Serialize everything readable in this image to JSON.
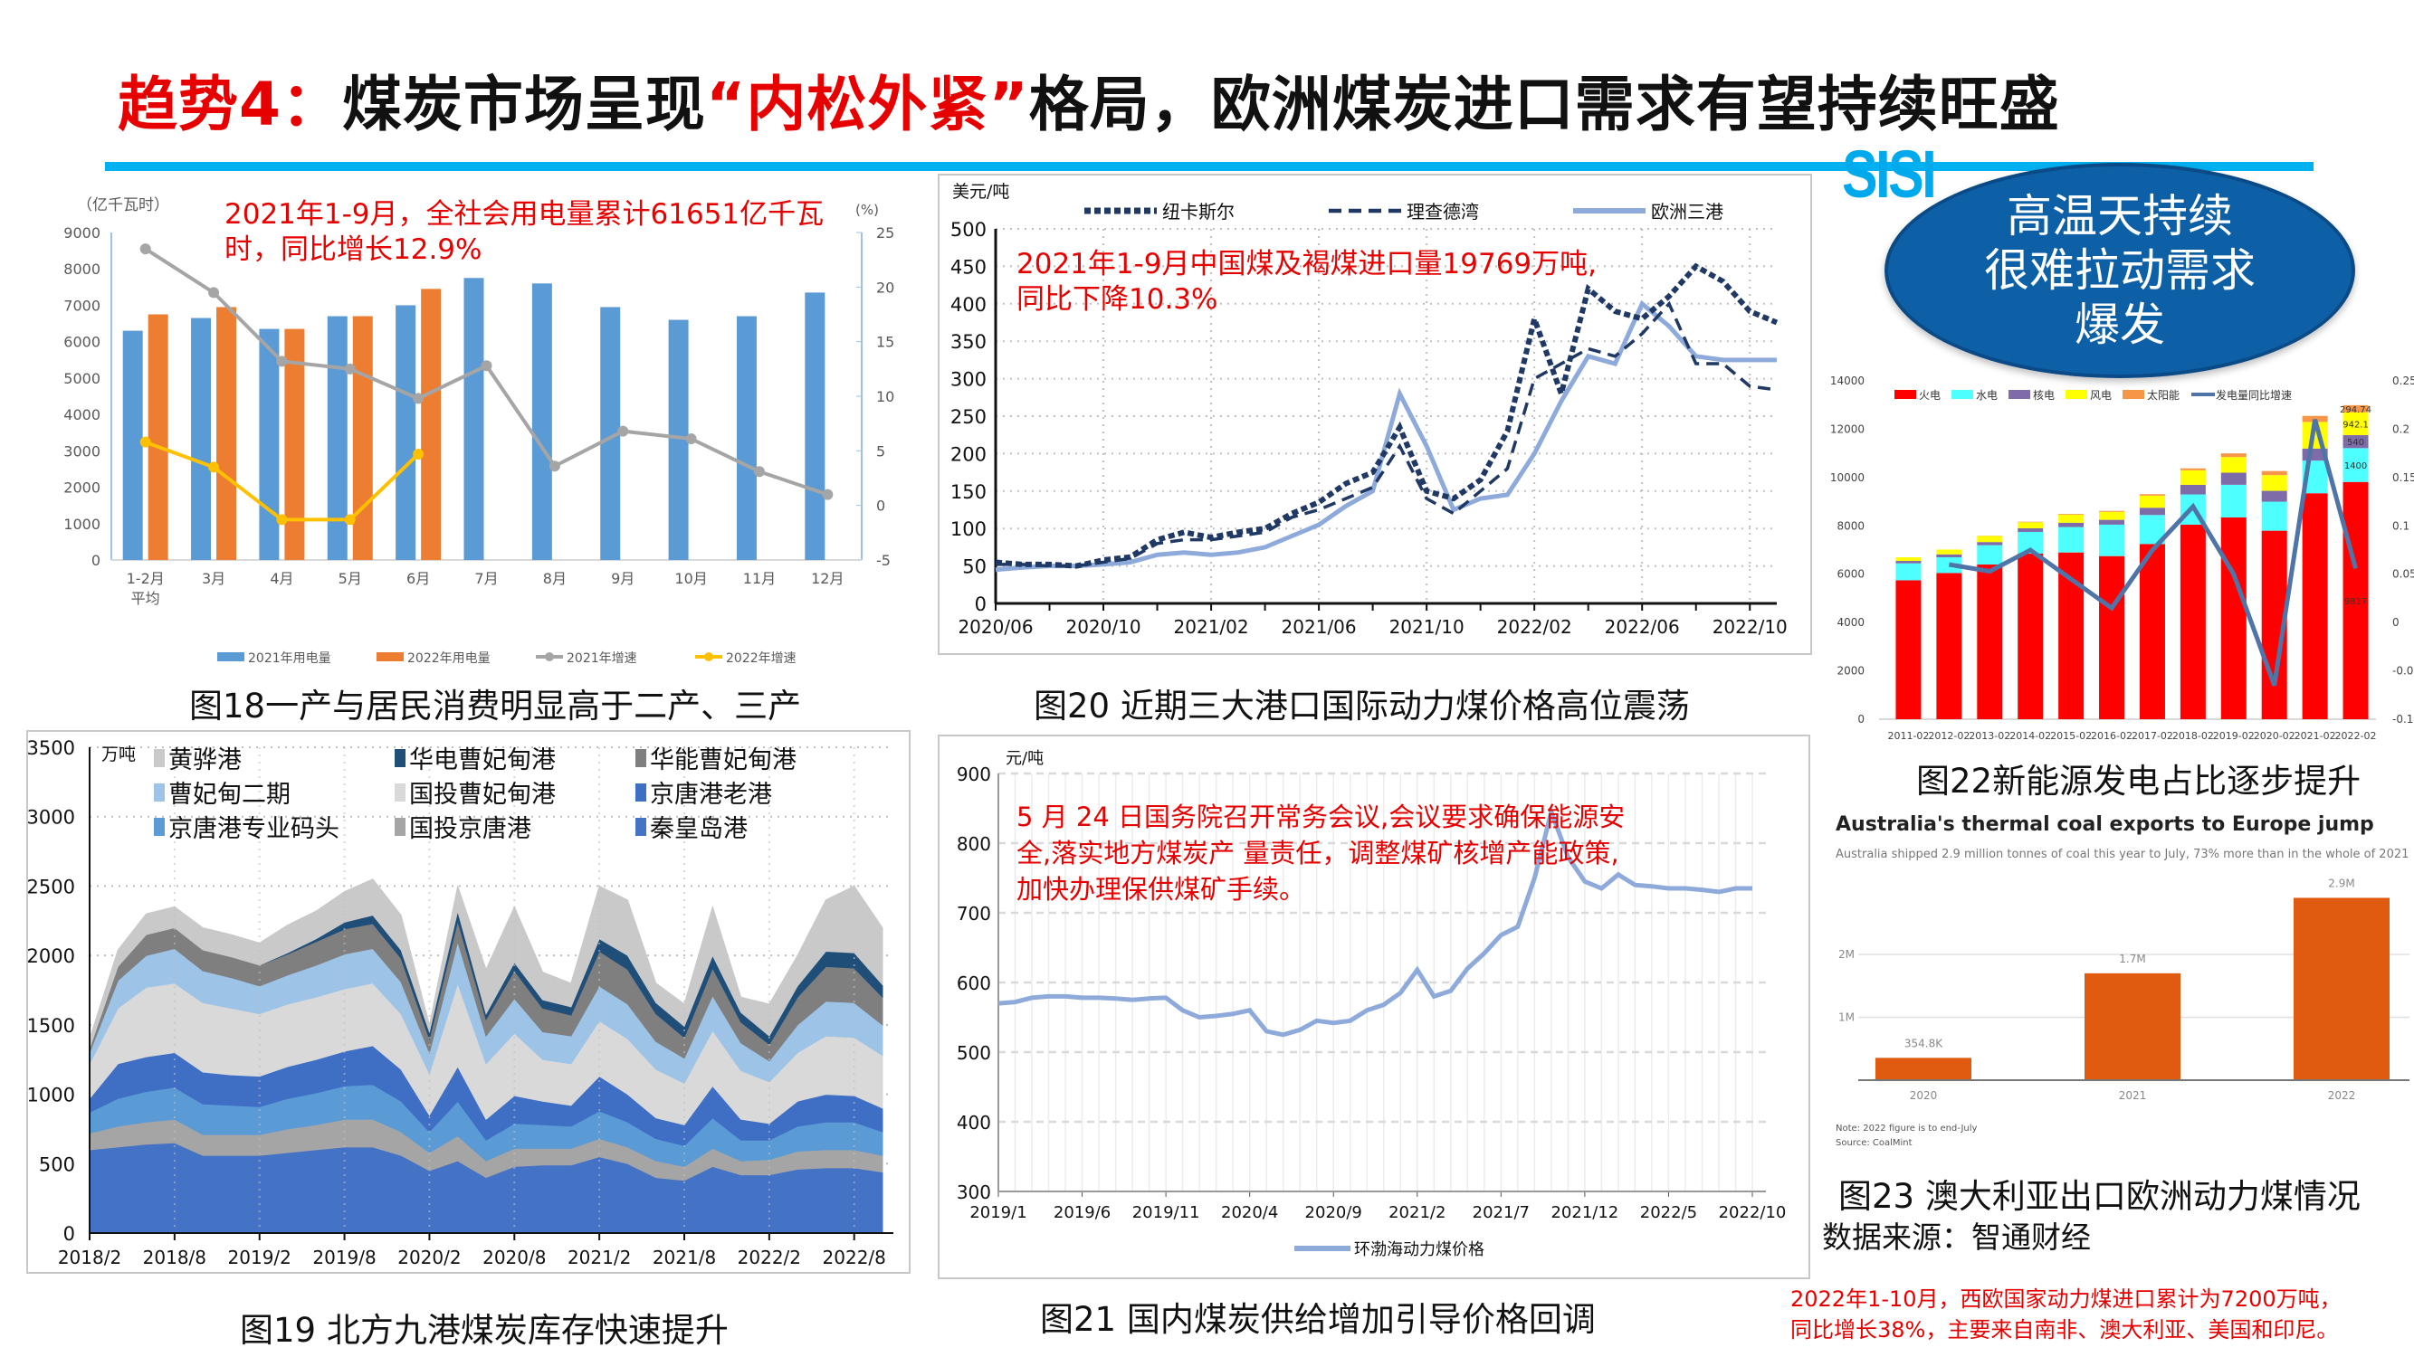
{
  "slide": {
    "title": [
      {
        "text": "趋势4："
      },
      {
        "text": "煤炭市场呈现"
      },
      {
        "text": "“内松外紧”"
      },
      {
        "text": "格局，欧洲煤炭进口需求有望持续旺盛"
      }
    ],
    "logo_text": "SISI",
    "bubble_lines": [
      "高温天持续",
      "很难拉动需求",
      "爆发"
    ],
    "captions": {
      "fig18": "图18一产与居民消费明显高于二产、三产",
      "fig19": "图19 北方九港煤炭库存快速提升",
      "fig20": "图20 近期三大港口国际动力煤价格高位震荡",
      "fig21": "图21 国内煤炭供给增加引导价格回调",
      "fig22": "图22新能源发电占比逐步提升",
      "fig23": "图23 澳大利亚出口欧洲动力煤情况"
    },
    "source": "数据来源：智通财经",
    "bottom_note": [
      "2022年1-10月，西欧国家动力煤进口累计为7200万吨，",
      "同比增长38%，主要来自南非、澳大利亚、美国和印尼。"
    ],
    "colors": {
      "accent_blue": "#00b0f0",
      "title_red": "#e60000",
      "bubble": "#0d5fa6"
    }
  },
  "chart_data": [
    {
      "id": "fig18",
      "type": "bar",
      "title": "",
      "annotation": [
        "2021年1-9月，全社会用电量累计61651亿千瓦",
        "时，同比增长12.9%"
      ],
      "ylabel": "（亿千瓦时）",
      "y2label": "(%)",
      "ylim": [
        0,
        9000
      ],
      "y2lim": [
        -5,
        25
      ],
      "categories": [
        "1-2月 平均",
        "3月",
        "4月",
        "5月",
        "6月",
        "7月",
        "8月",
        "9月",
        "10月",
        "11月",
        "12月"
      ],
      "series": [
        {
          "name": "2021年用电量",
          "color": "#5b9bd5",
          "values": [
            6300,
            6650,
            6350,
            6700,
            7000,
            7750,
            7600,
            6950,
            6600,
            6700,
            7350
          ]
        },
        {
          "name": "2022年用电量",
          "color": "#ed7d31",
          "values": [
            6750,
            6950,
            6350,
            6700,
            7450,
            null,
            null,
            null,
            null,
            null,
            null
          ]
        }
      ],
      "line_series": [
        {
          "name": "2021年增速",
          "color": "#a5a5a5",
          "values": [
            23.5,
            19.5,
            13.2,
            12.5,
            9.8,
            12.8,
            3.6,
            6.8,
            6.1,
            3.1,
            1.0
          ]
        },
        {
          "name": "2022年增速",
          "color": "#ffc000",
          "values": [
            5.8,
            3.5,
            -1.3,
            -1.3,
            4.7,
            null,
            null,
            null,
            null,
            null,
            null
          ]
        }
      ],
      "legend": "bottom"
    },
    {
      "id": "fig20",
      "type": "line",
      "ylabel": "美元/吨",
      "annotation": [
        "2021年1-9月中国煤及褐煤进口量19769万吨,",
        "同比下降10.3%"
      ],
      "ylim": [
        0,
        500
      ],
      "x": [
        "2020/06",
        "2020/07",
        "2020/08",
        "2020/09",
        "2020/10",
        "2020/11",
        "2020/12",
        "2021/01",
        "2021/02",
        "2021/03",
        "2021/04",
        "2021/05",
        "2021/06",
        "2021/07",
        "2021/08",
        "2021/09",
        "2021/10",
        "2021/11",
        "2021/12",
        "2022/01",
        "2022/02",
        "2022/03",
        "2022/04",
        "2022/05",
        "2022/06",
        "2022/07",
        "2022/08",
        "2022/09",
        "2022/10",
        "2022/11"
      ],
      "series": [
        {
          "name": "纽卡斯尔",
          "color": "#1f3864",
          "style": "dotted",
          "values": [
            55,
            52,
            52,
            50,
            58,
            62,
            85,
            95,
            88,
            95,
            100,
            120,
            135,
            160,
            175,
            235,
            150,
            140,
            165,
            230,
            380,
            280,
            420,
            390,
            380,
            410,
            450,
            430,
            390,
            375
          ]
        },
        {
          "name": "理查德湾",
          "color": "#1f3864",
          "style": "dashed",
          "values": [
            52,
            52,
            50,
            50,
            55,
            60,
            80,
            85,
            85,
            90,
            95,
            115,
            125,
            140,
            155,
            210,
            140,
            120,
            150,
            180,
            300,
            320,
            340,
            330,
            360,
            400,
            320,
            320,
            290,
            285
          ]
        },
        {
          "name": "欧洲三港",
          "color": "#8eaadb",
          "style": "solid",
          "values": [
            45,
            48,
            50,
            50,
            52,
            55,
            65,
            68,
            65,
            68,
            75,
            90,
            105,
            130,
            150,
            280,
            210,
            125,
            140,
            145,
            200,
            270,
            330,
            320,
            400,
            370,
            330,
            325,
            325,
            325
          ]
        }
      ],
      "legend": "top",
      "grid": true
    },
    {
      "id": "fig22",
      "type": "bar",
      "stacked": true,
      "ylim": [
        0,
        14000
      ],
      "y2lim": [
        -0.1,
        0.25
      ],
      "categories": [
        "2011-02",
        "2012-02",
        "2013-02",
        "2014-02",
        "2015-02",
        "2016-02",
        "2017-02",
        "2018-02",
        "2019-02",
        "2020-02",
        "2021-02",
        "2022-02"
      ],
      "series": [
        {
          "name": "火电",
          "color": "#ff0000",
          "values": [
            5750,
            6050,
            6400,
            6850,
            6900,
            6750,
            7250,
            8050,
            8350,
            7800,
            9350,
            9817
          ]
        },
        {
          "name": "水电",
          "color": "#4dffff",
          "values": [
            700,
            650,
            800,
            900,
            1050,
            1300,
            1200,
            1250,
            1350,
            1200,
            1350,
            1400
          ]
        },
        {
          "name": "核电",
          "color": "#7e6ca8",
          "values": [
            100,
            120,
            130,
            150,
            180,
            200,
            300,
            400,
            500,
            450,
            500,
            540
          ]
        },
        {
          "name": "风电",
          "color": "#ffff00",
          "values": [
            150,
            200,
            250,
            250,
            330,
            330,
            500,
            600,
            650,
            650,
            1100,
            942.1
          ]
        },
        {
          "name": "太阳能",
          "color": "#f79646",
          "values": [
            0,
            0,
            10,
            20,
            30,
            40,
            60,
            80,
            150,
            170,
            250,
            294.74
          ]
        }
      ],
      "line_series": [
        {
          "name": "发电量同比增速",
          "color": "#4f74a8",
          "values": [
            null,
            0.06,
            0.053,
            0.075,
            0.045,
            0.015,
            0.075,
            0.12,
            0.05,
            -0.065,
            0.21,
            0.056
          ]
        }
      ],
      "data_labels": [
        "9817",
        "1400",
        "540",
        "942.1",
        "294.74"
      ],
      "legend": "top"
    },
    {
      "id": "fig19",
      "type": "area",
      "stacked": true,
      "ylabel": "万吨",
      "ylim": [
        0,
        3500
      ],
      "x": [
        "2018/2",
        "2018/4",
        "2018/6",
        "2018/8",
        "2018/10",
        "2018/12",
        "2019/2",
        "2019/4",
        "2019/6",
        "2019/8",
        "2019/10",
        "2019/12",
        "2020/2",
        "2020/4",
        "2020/6",
        "2020/8",
        "2020/10",
        "2020/12",
        "2021/2",
        "2021/4",
        "2021/6",
        "2021/8",
        "2021/10",
        "2021/12",
        "2022/2",
        "2022/4",
        "2022/6",
        "2022/8",
        "2022/10"
      ],
      "series": [
        {
          "name": "黄骅港",
          "color": "#c9c9c9",
          "values": [
            70,
            120,
            150,
            150,
            160,
            160,
            160,
            200,
            200,
            220,
            260,
            250,
            50,
            180,
            320,
            400,
            200,
            170,
            380,
            400,
            140,
            160,
            350,
            110,
            230,
            220,
            370,
            480,
            410
          ]
        },
        {
          "name": "华电曹妃甸港",
          "color": "#1f4e79",
          "values": [
            0,
            0,
            0,
            0,
            0,
            0,
            0,
            10,
            20,
            50,
            60,
            60,
            50,
            70,
            40,
            60,
            60,
            60,
            90,
            100,
            80,
            80,
            90,
            70,
            60,
            80,
            110,
            110,
            90
          ]
        },
        {
          "name": "华能曹妃甸港",
          "color": "#7f7f7f",
          "values": [
            30,
            100,
            150,
            150,
            150,
            150,
            150,
            150,
            170,
            180,
            180,
            170,
            100,
            150,
            120,
            200,
            170,
            150,
            250,
            250,
            200,
            150,
            200,
            150,
            120,
            200,
            250,
            250,
            200
          ]
        },
        {
          "name": "曹妃甸二期",
          "color": "#9dc3e6",
          "values": [
            80,
            200,
            230,
            250,
            230,
            220,
            200,
            210,
            230,
            250,
            250,
            230,
            150,
            300,
            200,
            250,
            200,
            200,
            250,
            250,
            200,
            180,
            250,
            200,
            150,
            200,
            250,
            250,
            220
          ]
        },
        {
          "name": "国投曹妃甸港",
          "color": "#d9d9d9",
          "values": [
            250,
            400,
            500,
            500,
            500,
            480,
            450,
            450,
            450,
            450,
            450,
            400,
            300,
            600,
            400,
            450,
            300,
            300,
            400,
            400,
            350,
            300,
            400,
            350,
            300,
            350,
            420,
            420,
            380
          ]
        },
        {
          "name": "京唐港老港",
          "color": "#3f6fc4",
          "values": [
            100,
            250,
            250,
            250,
            230,
            220,
            220,
            230,
            240,
            250,
            280,
            230,
            120,
            250,
            150,
            200,
            170,
            150,
            250,
            200,
            150,
            150,
            230,
            150,
            120,
            180,
            200,
            190,
            170
          ]
        },
        {
          "name": "京唐港专业码头",
          "color": "#5b9bd5",
          "values": [
            150,
            200,
            220,
            230,
            220,
            210,
            200,
            220,
            230,
            240,
            250,
            220,
            150,
            250,
            150,
            180,
            170,
            160,
            200,
            180,
            160,
            150,
            220,
            150,
            140,
            180,
            200,
            200,
            170
          ]
        },
        {
          "name": "国投京唐港",
          "color": "#a5a5a5",
          "values": [
            120,
            150,
            160,
            170,
            150,
            150,
            150,
            170,
            180,
            200,
            200,
            170,
            130,
            180,
            120,
            130,
            120,
            120,
            130,
            120,
            120,
            100,
            130,
            100,
            110,
            130,
            130,
            130,
            120
          ]
        },
        {
          "name": "秦皇岛港",
          "color": "#4472c4",
          "values": [
            600,
            620,
            640,
            650,
            560,
            560,
            560,
            580,
            600,
            620,
            620,
            560,
            450,
            520,
            400,
            480,
            490,
            490,
            550,
            500,
            400,
            380,
            480,
            420,
            420,
            460,
            470,
            470,
            440
          ]
        }
      ],
      "x_ticks": [
        "2018/2",
        "2018/8",
        "2019/2",
        "2019/8",
        "2020/2",
        "2020/8",
        "2021/2",
        "2021/8",
        "2022/2",
        "2022/8"
      ],
      "legend": "top-left",
      "grid": true
    },
    {
      "id": "fig21",
      "type": "line",
      "ylabel": "元/吨",
      "annotation": [
        "5 月 24 日国务院召开常务会议,会议要求确保能源安",
        "全,落实地方煤炭产 量责任，调整煤矿核增产能政策,",
        "加快办理保供煤矿手续。"
      ],
      "ylim": [
        300,
        900
      ],
      "x_ticks": [
        "2019/1",
        "2019/6",
        "2019/11",
        "2020/4",
        "2020/9",
        "2021/2",
        "2021/7",
        "2021/12",
        "2022/5",
        "2022/10"
      ],
      "series": [
        {
          "name": "环渤海动力煤价格",
          "color": "#8eaadb",
          "values": [
            570,
            572,
            578,
            580,
            580,
            578,
            578,
            577,
            575,
            577,
            578,
            560,
            550,
            552,
            555,
            560,
            530,
            525,
            532,
            545,
            542,
            545,
            560,
            568,
            585,
            618,
            580,
            588,
            620,
            642,
            668,
            680,
            750,
            845,
            780,
            745,
            735,
            755,
            740,
            738,
            735,
            735,
            733,
            730,
            735,
            735
          ]
        }
      ],
      "legend": "bottom",
      "grid": true
    },
    {
      "id": "fig23",
      "type": "bar",
      "title": "Australia's thermal coal exports to Europe jump",
      "subtitle": "Australia shipped 2.9 million tonnes of coal this year to July, 73% more than in the whole of 2021",
      "categories": [
        "2020",
        "2021",
        "2022"
      ],
      "values": [
        0.3548,
        1.7,
        2.9
      ],
      "value_labels": [
        "354.8K",
        "1.7M",
        "2.9M"
      ],
      "y_ticks": [
        {
          "v": 1,
          "label": "1M"
        },
        {
          "v": 2,
          "label": "2M"
        }
      ],
      "ylim": [
        0,
        3
      ],
      "unit": "million tonnes",
      "color": "#e05a10",
      "notes": [
        "Note: 2022 figure is to end-July",
        "Source: CoalMint"
      ]
    }
  ]
}
